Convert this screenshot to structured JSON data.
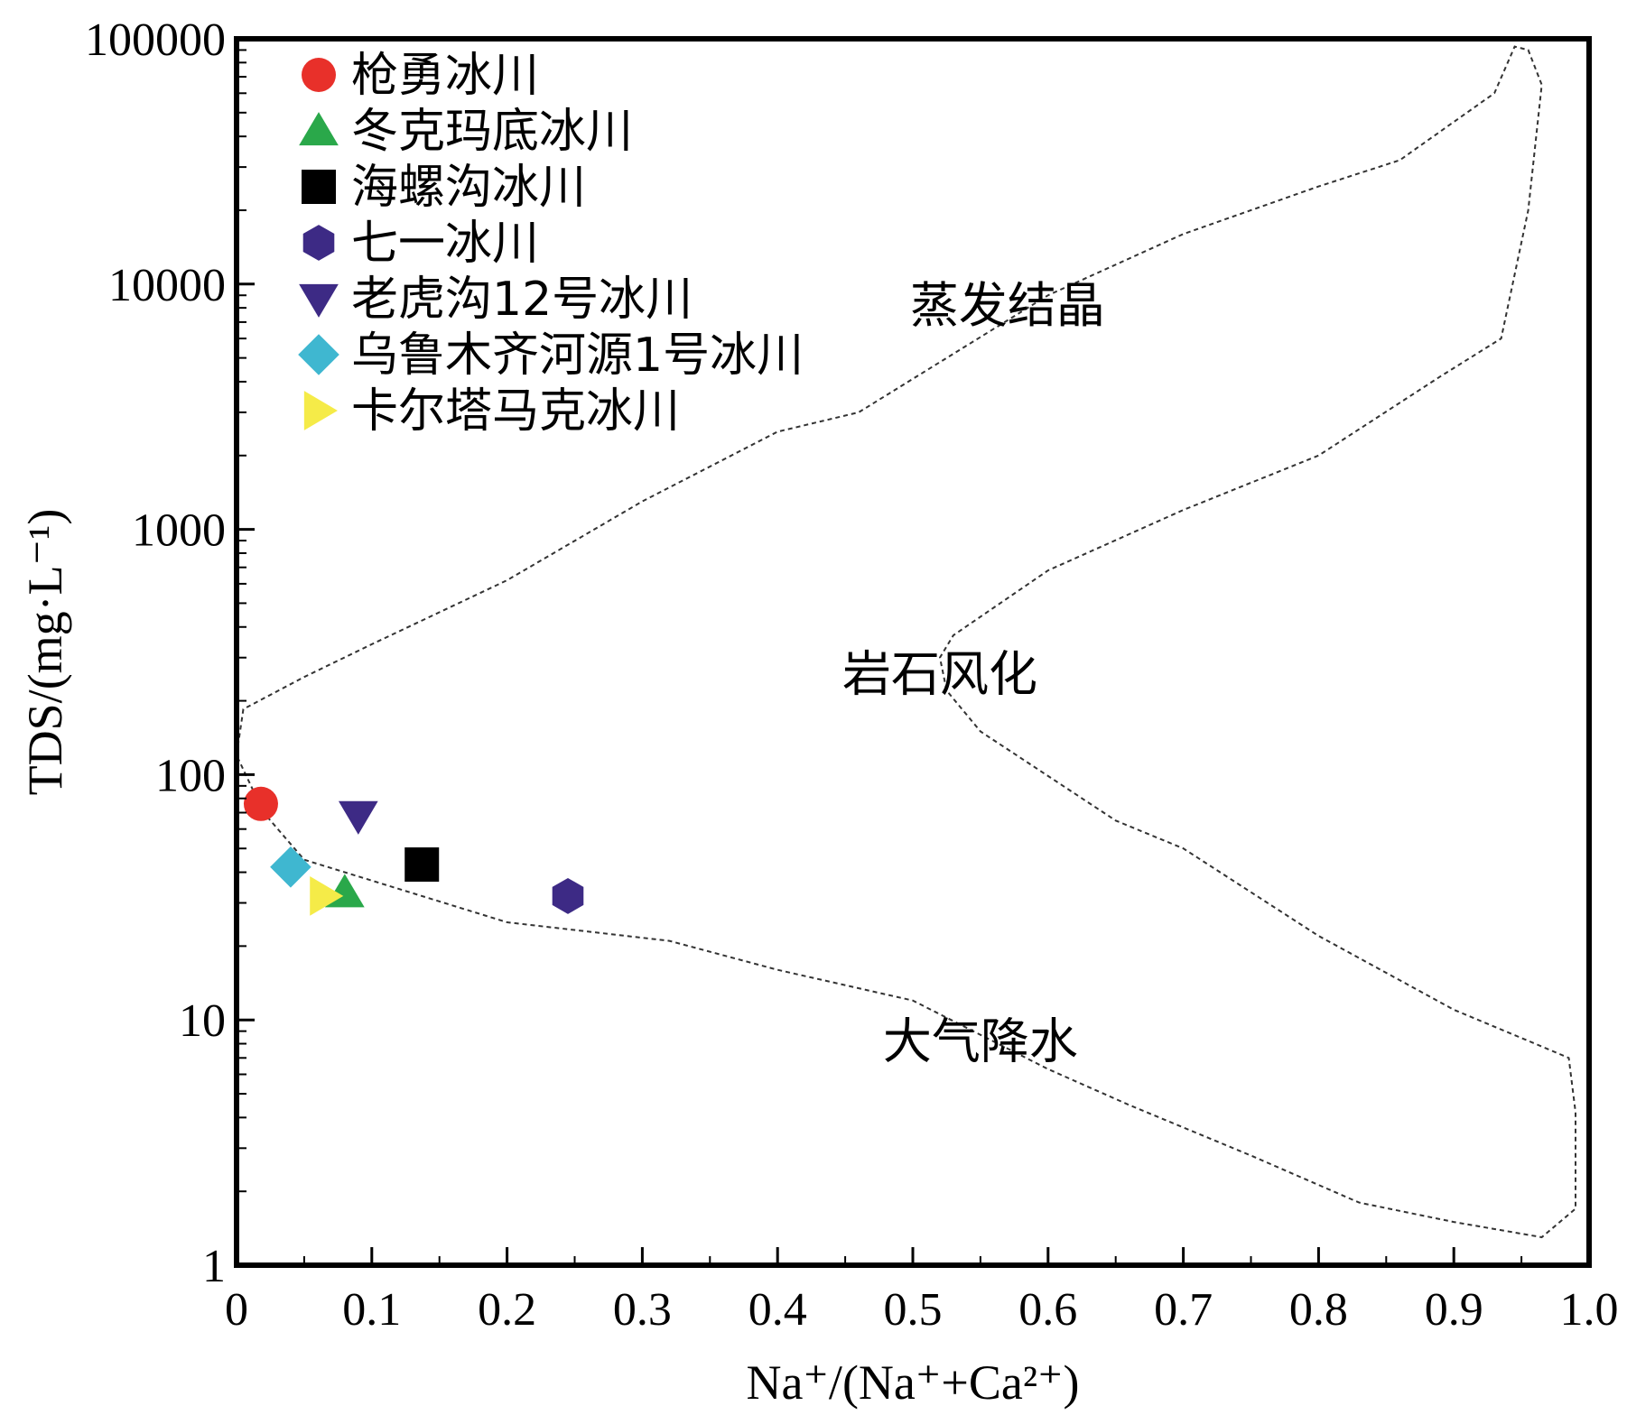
{
  "chart_data": {
    "type": "scatter",
    "xlabel": "Na⁺/(Na⁺+Ca²⁺)",
    "ylabel": "TDS/(mg·L⁻¹)",
    "xlim": [
      0,
      1.0
    ],
    "ylim": [
      1,
      100000
    ],
    "yscale": "log",
    "grid": false,
    "legend_position": "top-left",
    "x_ticks": [
      "0",
      "0.1",
      "0.2",
      "0.3",
      "0.4",
      "0.5",
      "0.6",
      "0.7",
      "0.8",
      "0.9",
      "1.0"
    ],
    "y_ticks": [
      "1",
      "10",
      "100",
      "1000",
      "10000",
      "100000"
    ],
    "series": [
      {
        "name": "枪勇冰川",
        "marker": "circle",
        "color": "#e8302a",
        "x": 0.018,
        "y": 76
      },
      {
        "name": "冬克玛底冰川",
        "marker": "triangle-up",
        "color": "#2aa84a",
        "x": 0.08,
        "y": 33
      },
      {
        "name": "海螺沟冰川",
        "marker": "square",
        "color": "#000000",
        "x": 0.137,
        "y": 43
      },
      {
        "name": "七一冰川",
        "marker": "hexagon",
        "color": "#3d2a85",
        "x": 0.245,
        "y": 32
      },
      {
        "name": "老虎沟12号冰川",
        "marker": "triangle-down",
        "color": "#3d2a85",
        "x": 0.09,
        "y": 68
      },
      {
        "name": "乌鲁木齐河源1号冰川",
        "marker": "diamond",
        "color": "#3fb7d0",
        "x": 0.04,
        "y": 42
      },
      {
        "name": "卡尔塔马克冰川",
        "marker": "triangle-right",
        "color": "#f5eb48",
        "x": 0.065,
        "y": 32
      }
    ],
    "regions": [
      {
        "label": "蒸发结晶",
        "x": 0.57,
        "y": 7000
      },
      {
        "label": "岩石风化",
        "x": 0.52,
        "y": 220
      },
      {
        "label": "大气降水",
        "x": 0.55,
        "y": 7
      }
    ],
    "envelope": [
      [
        0.02,
        70
      ],
      [
        0.0,
        120
      ],
      [
        0.005,
        185
      ],
      [
        0.05,
        250
      ],
      [
        0.1,
        340
      ],
      [
        0.2,
        620
      ],
      [
        0.3,
        1300
      ],
      [
        0.4,
        2500
      ],
      [
        0.46,
        3000
      ],
      [
        0.6,
        9000
      ],
      [
        0.7,
        16000
      ],
      [
        0.8,
        25000
      ],
      [
        0.86,
        32000
      ],
      [
        0.93,
        60000
      ],
      [
        0.945,
        93000
      ],
      [
        0.955,
        90000
      ],
      [
        0.965,
        65000
      ],
      [
        0.955,
        20000
      ],
      [
        0.935,
        6000
      ],
      [
        0.89,
        4200
      ],
      [
        0.8,
        2000
      ],
      [
        0.7,
        1200
      ],
      [
        0.6,
        680
      ],
      [
        0.53,
        370
      ],
      [
        0.52,
        300
      ],
      [
        0.525,
        220
      ],
      [
        0.55,
        150
      ],
      [
        0.65,
        65
      ],
      [
        0.7,
        50
      ],
      [
        0.8,
        22
      ],
      [
        0.9,
        11
      ],
      [
        0.96,
        8
      ],
      [
        0.985,
        7
      ],
      [
        0.99,
        4.2
      ],
      [
        0.99,
        1.7
      ],
      [
        0.965,
        1.3
      ],
      [
        0.9,
        1.5
      ],
      [
        0.83,
        1.8
      ],
      [
        0.75,
        2.8
      ],
      [
        0.66,
        4.5
      ],
      [
        0.6,
        6.3
      ],
      [
        0.5,
        12
      ],
      [
        0.4,
        16
      ],
      [
        0.32,
        21
      ],
      [
        0.2,
        25
      ],
      [
        0.1,
        37
      ],
      [
        0.05,
        45
      ],
      [
        0.02,
        70
      ]
    ]
  }
}
